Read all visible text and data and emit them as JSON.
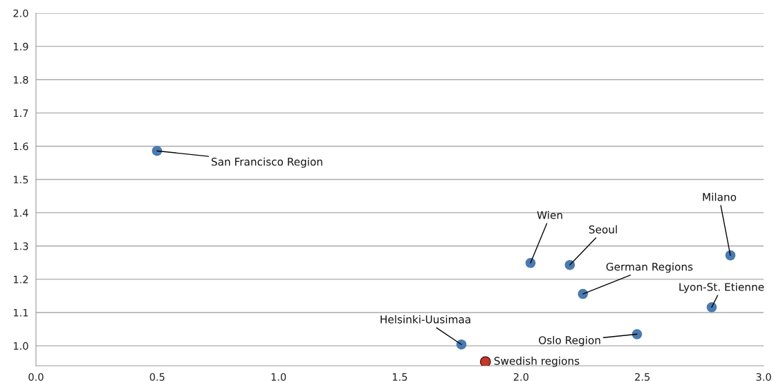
{
  "chart_data": {
    "type": "scatter",
    "series": [
      {
        "color": "#4a7ab0",
        "x": [
          0.499,
          2.039,
          2.201,
          2.255,
          2.863,
          2.786,
          2.478,
          1.754
        ],
        "values": [
          1.586,
          1.249,
          1.243,
          1.156,
          1.272,
          1.116,
          1.035,
          1.004
        ]
      },
      {
        "color": "#c0392b",
        "x": [
          1.853
        ],
        "values": [
          0.952
        ]
      }
    ],
    "annotations": [
      {
        "text": "San Francisco Region",
        "x": 0.499,
        "y": 1.586
      },
      {
        "text": "Wien",
        "x": 2.039,
        "y": 1.249
      },
      {
        "text": "Seoul",
        "x": 2.201,
        "y": 1.243
      },
      {
        "text": "German Regions",
        "x": 2.255,
        "y": 1.156
      },
      {
        "text": "Milano",
        "x": 2.863,
        "y": 1.272
      },
      {
        "text": "Lyon-St. Etienne",
        "x": 2.786,
        "y": 1.116
      },
      {
        "text": "Oslo Region",
        "x": 2.478,
        "y": 1.035
      },
      {
        "text": "Helsinki-Uusimaa",
        "x": 1.754,
        "y": 1.004
      },
      {
        "text": "Swedish regions",
        "x": 1.853,
        "y": 0.952
      }
    ],
    "xlim": [
      0,
      3.0
    ],
    "xticks": [
      {
        "value": 0,
        "label": "0.0"
      },
      0.5,
      {
        "value": 1,
        "label": "1.0"
      },
      1.5,
      {
        "value": 2,
        "label": "2.0"
      },
      2.5,
      {
        "value": 3,
        "label": "3.0"
      }
    ],
    "ylim": [
      0.94,
      2.0
    ],
    "yticks": [
      {
        "value": 1,
        "label": "1.0"
      },
      1.1,
      1.2,
      1.3,
      1.4,
      1.5,
      1.6,
      1.7,
      1.8,
      1.9,
      {
        "value": 2,
        "label": "2.0"
      }
    ],
    "grid": "y",
    "marker": "circle"
  }
}
